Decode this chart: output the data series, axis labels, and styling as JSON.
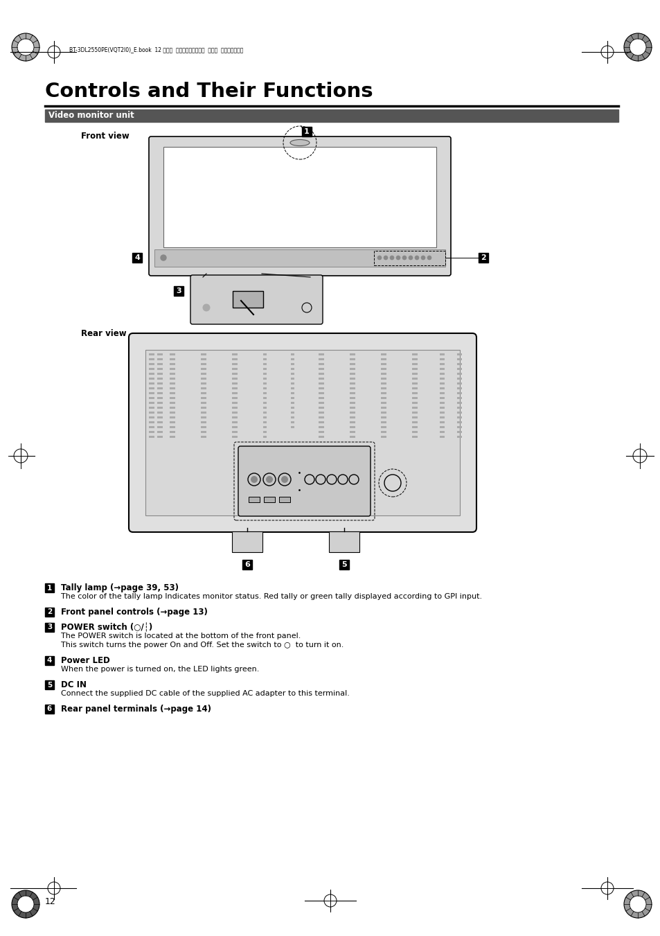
{
  "title": "Controls and Their Functions",
  "section_header": "Video monitor unit",
  "front_view_label": "Front view",
  "rear_view_label": "Rear view",
  "page_number": "12",
  "header_text": "BT-3DL2550PE(VQT2I0)_E.book  12 ページ  ２０１０年７月８日  木曜日  午後２時１２分",
  "items": [
    {
      "num": "1",
      "bold_text": "Tally lamp (→page 39, 53)",
      "normal_text": "The color of the tally lamp Indicates monitor status. Red tally or green tally displayed according to GPI input."
    },
    {
      "num": "2",
      "bold_text": "Front panel controls (→page 13)",
      "normal_text": ""
    },
    {
      "num": "3",
      "bold_text": "POWER switch (○/┆)",
      "normal_text": "The POWER switch is located at the bottom of the front panel.\nThis switch turns the power On and Off. Set the switch to ○  to turn it on."
    },
    {
      "num": "4",
      "bold_text": "Power LED",
      "normal_text": "When the power is turned on, the LED lights green."
    },
    {
      "num": "5",
      "bold_text": "DC IN",
      "normal_text": "Connect the supplied DC cable of the supplied AC adapter to this terminal."
    },
    {
      "num": "6",
      "bold_text": "Rear panel terminals (→page 14)",
      "normal_text": ""
    }
  ],
  "bg_color": "#ffffff",
  "text_color": "#000000"
}
